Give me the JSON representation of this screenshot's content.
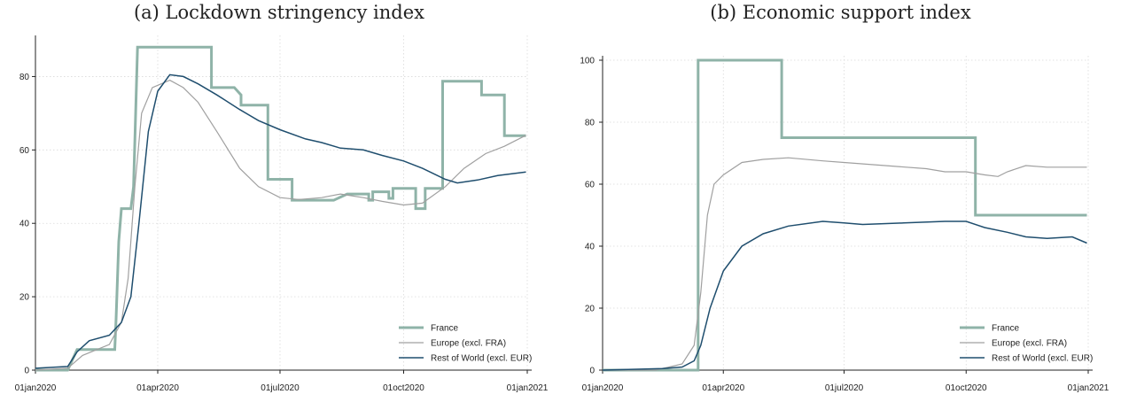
{
  "panels": {
    "a": {
      "title": "(a) Lockdown stringency index"
    },
    "b": {
      "title": "(b) Economic support index"
    }
  },
  "chart_data": [
    {
      "type": "line",
      "title": "(a) Lockdown stringency index",
      "xlabel": "",
      "ylabel": "",
      "x_axis": "date",
      "xlim": [
        "2020-01-01",
        "2021-01-01"
      ],
      "x_ticks": [
        "01jan2020",
        "01apr2020",
        "01jul2020",
        "01oct2020",
        "01jan2021"
      ],
      "ylim": [
        0,
        90
      ],
      "y_ticks": [
        0,
        20,
        40,
        60,
        80
      ],
      "grid": true,
      "legend_position": "bottom-right",
      "series": [
        {
          "name": "France",
          "color": "#8fb3a8",
          "width": 3,
          "step": true,
          "points": [
            [
              "2020-01-01",
              0
            ],
            [
              "2020-01-25",
              0
            ],
            [
              "2020-02-01",
              5.6
            ],
            [
              "2020-02-20",
              5.6
            ],
            [
              "2020-02-29",
              5.6
            ],
            [
              "2020-03-01",
              14
            ],
            [
              "2020-03-03",
              35
            ],
            [
              "2020-03-05",
              44
            ],
            [
              "2020-03-12",
              44
            ],
            [
              "2020-03-14",
              50
            ],
            [
              "2020-03-17",
              88
            ],
            [
              "2020-05-11",
              88
            ],
            [
              "2020-05-11",
              77
            ],
            [
              "2020-05-28",
              77
            ],
            [
              "2020-06-02",
              75
            ],
            [
              "2020-06-02",
              72.2
            ],
            [
              "2020-06-22",
              72.2
            ],
            [
              "2020-06-22",
              52
            ],
            [
              "2020-07-10",
              52
            ],
            [
              "2020-07-10",
              46.3
            ],
            [
              "2020-08-10",
              46.3
            ],
            [
              "2020-08-20",
              48
            ],
            [
              "2020-09-05",
              48
            ],
            [
              "2020-09-05",
              46.3
            ],
            [
              "2020-09-08",
              46.3
            ],
            [
              "2020-09-08",
              48.6
            ],
            [
              "2020-09-20",
              48.6
            ],
            [
              "2020-09-20",
              46.8
            ],
            [
              "2020-09-23",
              46.8
            ],
            [
              "2020-09-23",
              49.5
            ],
            [
              "2020-10-10",
              49.5
            ],
            [
              "2020-10-10",
              44
            ],
            [
              "2020-10-17",
              44
            ],
            [
              "2020-10-17",
              49.5
            ],
            [
              "2020-10-30",
              49.5
            ],
            [
              "2020-10-30",
              78.7
            ],
            [
              "2020-11-28",
              78.7
            ],
            [
              "2020-11-28",
              75
            ],
            [
              "2020-12-15",
              75
            ],
            [
              "2020-12-15",
              63.9
            ],
            [
              "2020-12-31",
              63.9
            ]
          ]
        },
        {
          "name": "Europe (excl. FRA)",
          "color": "#a0a0a0",
          "width": 1.2,
          "step": false,
          "points": [
            [
              "2020-01-01",
              0
            ],
            [
              "2020-01-25",
              0.5
            ],
            [
              "2020-02-05",
              4
            ],
            [
              "2020-02-25",
              7
            ],
            [
              "2020-03-05",
              13
            ],
            [
              "2020-03-10",
              25
            ],
            [
              "2020-03-15",
              50
            ],
            [
              "2020-03-20",
              70
            ],
            [
              "2020-03-28",
              77
            ],
            [
              "2020-04-10",
              79
            ],
            [
              "2020-04-20",
              77
            ],
            [
              "2020-05-01",
              73
            ],
            [
              "2020-05-15",
              65
            ],
            [
              "2020-06-01",
              55
            ],
            [
              "2020-06-15",
              50
            ],
            [
              "2020-07-01",
              47
            ],
            [
              "2020-07-15",
              46.5
            ],
            [
              "2020-08-01",
              47
            ],
            [
              "2020-08-15",
              48
            ],
            [
              "2020-09-01",
              47
            ],
            [
              "2020-09-15",
              46
            ],
            [
              "2020-10-01",
              45
            ],
            [
              "2020-10-15",
              45.5
            ],
            [
              "2020-11-01",
              50
            ],
            [
              "2020-11-15",
              55
            ],
            [
              "2020-12-01",
              59
            ],
            [
              "2020-12-15",
              61
            ],
            [
              "2020-12-31",
              64
            ]
          ]
        },
        {
          "name": "Rest of World (excl. EUR)",
          "color": "#1f4e6e",
          "width": 1.5,
          "step": false,
          "points": [
            [
              "2020-01-01",
              0.5
            ],
            [
              "2020-01-25",
              1
            ],
            [
              "2020-02-01",
              5
            ],
            [
              "2020-02-10",
              8
            ],
            [
              "2020-02-25",
              9.5
            ],
            [
              "2020-03-05",
              13
            ],
            [
              "2020-03-12",
              20
            ],
            [
              "2020-03-18",
              40
            ],
            [
              "2020-03-25",
              65
            ],
            [
              "2020-04-01",
              76
            ],
            [
              "2020-04-10",
              80.5
            ],
            [
              "2020-04-20",
              80
            ],
            [
              "2020-05-01",
              78
            ],
            [
              "2020-05-15",
              75
            ],
            [
              "2020-06-01",
              71
            ],
            [
              "2020-06-15",
              68
            ],
            [
              "2020-07-01",
              65.5
            ],
            [
              "2020-07-20",
              63
            ],
            [
              "2020-08-01",
              62
            ],
            [
              "2020-08-15",
              60.5
            ],
            [
              "2020-09-01",
              60
            ],
            [
              "2020-09-15",
              58.5
            ],
            [
              "2020-10-01",
              57
            ],
            [
              "2020-10-15",
              55
            ],
            [
              "2020-11-01",
              52
            ],
            [
              "2020-11-10",
              51
            ],
            [
              "2020-11-25",
              51.8
            ],
            [
              "2020-12-10",
              53
            ],
            [
              "2020-12-31",
              54
            ]
          ]
        }
      ]
    },
    {
      "type": "line",
      "title": "(b) Economic support index",
      "xlabel": "",
      "ylabel": "",
      "x_axis": "date",
      "xlim": [
        "2020-01-01",
        "2021-01-01"
      ],
      "x_ticks": [
        "01jan2020",
        "01apr2020",
        "01jul2020",
        "01oct2020",
        "01jan2021"
      ],
      "ylim": [
        0,
        100
      ],
      "y_ticks": [
        0,
        20,
        40,
        60,
        80,
        100
      ],
      "grid": true,
      "legend_position": "bottom-right",
      "series": [
        {
          "name": "France",
          "color": "#8fb3a8",
          "width": 3,
          "step": true,
          "points": [
            [
              "2020-01-01",
              0
            ],
            [
              "2020-03-13",
              0
            ],
            [
              "2020-03-13",
              100
            ],
            [
              "2020-05-15",
              100
            ],
            [
              "2020-05-15",
              75
            ],
            [
              "2020-10-08",
              75
            ],
            [
              "2020-10-08",
              50
            ],
            [
              "2020-12-31",
              50
            ]
          ]
        },
        {
          "name": "Europe (excl. FRA)",
          "color": "#a0a0a0",
          "width": 1.2,
          "step": false,
          "points": [
            [
              "2020-01-01",
              0
            ],
            [
              "2020-02-10",
              0
            ],
            [
              "2020-03-01",
              2
            ],
            [
              "2020-03-10",
              8
            ],
            [
              "2020-03-15",
              25
            ],
            [
              "2020-03-20",
              50
            ],
            [
              "2020-03-25",
              60
            ],
            [
              "2020-04-01",
              63
            ],
            [
              "2020-04-15",
              67
            ],
            [
              "2020-05-01",
              68
            ],
            [
              "2020-05-20",
              68.5
            ],
            [
              "2020-06-15",
              67.5
            ],
            [
              "2020-07-01",
              67
            ],
            [
              "2020-08-01",
              66
            ],
            [
              "2020-09-01",
              65
            ],
            [
              "2020-09-15",
              64
            ],
            [
              "2020-10-01",
              64
            ],
            [
              "2020-10-15",
              63
            ],
            [
              "2020-10-25",
              62.5
            ],
            [
              "2020-11-01",
              64
            ],
            [
              "2020-11-15",
              66
            ],
            [
              "2020-12-01",
              65.5
            ],
            [
              "2020-12-31",
              65.5
            ]
          ]
        },
        {
          "name": "Rest of World (excl. EUR)",
          "color": "#1f4e6e",
          "width": 1.5,
          "step": false,
          "points": [
            [
              "2020-01-01",
              0
            ],
            [
              "2020-02-15",
              0.5
            ],
            [
              "2020-03-01",
              1
            ],
            [
              "2020-03-10",
              3
            ],
            [
              "2020-03-15",
              8
            ],
            [
              "2020-03-22",
              20
            ],
            [
              "2020-04-01",
              32
            ],
            [
              "2020-04-15",
              40
            ],
            [
              "2020-05-01",
              44
            ],
            [
              "2020-05-20",
              46.5
            ],
            [
              "2020-06-15",
              48
            ],
            [
              "2020-07-01",
              47.5
            ],
            [
              "2020-07-15",
              47
            ],
            [
              "2020-08-15",
              47.5
            ],
            [
              "2020-09-15",
              48
            ],
            [
              "2020-10-01",
              48
            ],
            [
              "2020-10-15",
              46
            ],
            [
              "2020-11-01",
              44.5
            ],
            [
              "2020-11-15",
              43
            ],
            [
              "2020-12-01",
              42.5
            ],
            [
              "2020-12-20",
              43
            ],
            [
              "2020-12-31",
              41
            ]
          ]
        }
      ]
    }
  ]
}
